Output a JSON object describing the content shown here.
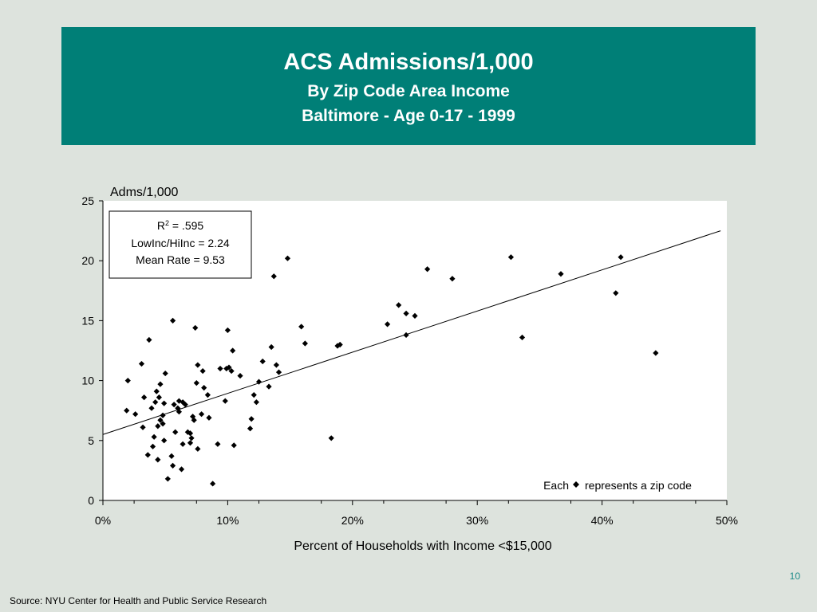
{
  "slide": {
    "title": "ACS Admissions/1,000",
    "subtitle1": "By Zip Code Area Income",
    "subtitle2": "Baltimore - Age 0-17 - 1999",
    "page_number": "10",
    "source": "Source:  NYU Center for Health and Public Service Research"
  },
  "colors": {
    "title_bg": "#007f77",
    "background": "#dde3dd",
    "plot_bg": "#ffffff",
    "marker": "#000000"
  },
  "chart_data": {
    "type": "scatter",
    "title": "",
    "xlabel": "Percent of Households with Income <$15,000",
    "ylabel": "Adms/1,000",
    "xlim": [
      0,
      50
    ],
    "ylim": [
      0,
      25
    ],
    "x_ticks": [
      "0%",
      "10%",
      "20%",
      "30%",
      "40%",
      "50%"
    ],
    "y_ticks": [
      "0",
      "5",
      "10",
      "15",
      "20",
      "25"
    ],
    "grid": false,
    "stats_box": {
      "r2_label": "R",
      "r2_sup": "2",
      "r2_value": " = .595",
      "line2": "LowInc/HiInc = 2.24",
      "line3": "Mean Rate = 9.53"
    },
    "note_prefix": "Each",
    "note_suffix": "represents a zip code",
    "trendline": {
      "x": [
        0,
        49.5
      ],
      "y": [
        5.5,
        22.5
      ]
    },
    "points": [
      [
        2.0,
        10.0
      ],
      [
        1.9,
        7.5
      ],
      [
        2.6,
        7.2
      ],
      [
        3.2,
        6.1
      ],
      [
        3.1,
        11.4
      ],
      [
        3.3,
        8.6
      ],
      [
        3.7,
        13.4
      ],
      [
        3.9,
        7.7
      ],
      [
        3.6,
        3.8
      ],
      [
        4.0,
        4.5
      ],
      [
        4.1,
        5.3
      ],
      [
        4.2,
        8.2
      ],
      [
        4.3,
        9.1
      ],
      [
        4.4,
        3.4
      ],
      [
        4.5,
        8.6
      ],
      [
        4.4,
        6.2
      ],
      [
        4.6,
        9.7
      ],
      [
        4.6,
        6.7
      ],
      [
        4.8,
        7.1
      ],
      [
        4.8,
        6.4
      ],
      [
        4.9,
        5.0
      ],
      [
        4.9,
        8.1
      ],
      [
        5.0,
        10.6
      ],
      [
        5.2,
        1.8
      ],
      [
        5.5,
        3.7
      ],
      [
        5.6,
        15.0
      ],
      [
        5.6,
        2.9
      ],
      [
        5.8,
        5.7
      ],
      [
        5.7,
        8.0
      ],
      [
        6.0,
        7.7
      ],
      [
        6.1,
        7.4
      ],
      [
        6.1,
        8.3
      ],
      [
        6.3,
        2.6
      ],
      [
        6.4,
        8.2
      ],
      [
        6.6,
        8.0
      ],
      [
        6.4,
        4.7
      ],
      [
        6.8,
        5.7
      ],
      [
        7.0,
        5.6
      ],
      [
        7.0,
        4.8
      ],
      [
        7.1,
        5.2
      ],
      [
        7.2,
        7.0
      ],
      [
        7.3,
        6.7
      ],
      [
        7.5,
        9.8
      ],
      [
        7.4,
        14.4
      ],
      [
        7.6,
        11.3
      ],
      [
        7.6,
        4.3
      ],
      [
        7.9,
        7.2
      ],
      [
        8.1,
        9.4
      ],
      [
        8.0,
        10.8
      ],
      [
        8.4,
        8.8
      ],
      [
        8.5,
        6.9
      ],
      [
        8.8,
        1.4
      ],
      [
        9.2,
        4.7
      ],
      [
        9.4,
        11.0
      ],
      [
        9.8,
        8.3
      ],
      [
        9.9,
        11.0
      ],
      [
        10.0,
        14.2
      ],
      [
        10.1,
        11.1
      ],
      [
        10.4,
        12.5
      ],
      [
        10.3,
        10.8
      ],
      [
        10.5,
        4.6
      ],
      [
        11.0,
        10.4
      ],
      [
        11.8,
        6.0
      ],
      [
        11.9,
        6.8
      ],
      [
        12.1,
        8.8
      ],
      [
        12.3,
        8.2
      ],
      [
        12.5,
        9.9
      ],
      [
        12.8,
        11.6
      ],
      [
        13.3,
        9.5
      ],
      [
        13.5,
        12.8
      ],
      [
        13.7,
        18.7
      ],
      [
        13.9,
        11.3
      ],
      [
        14.1,
        10.7
      ],
      [
        14.8,
        20.2
      ],
      [
        15.9,
        14.5
      ],
      [
        16.2,
        13.1
      ],
      [
        18.3,
        5.2
      ],
      [
        18.8,
        12.9
      ],
      [
        19.0,
        13.0
      ],
      [
        22.8,
        14.7
      ],
      [
        23.7,
        16.3
      ],
      [
        24.3,
        13.8
      ],
      [
        24.3,
        15.6
      ],
      [
        25.0,
        15.4
      ],
      [
        26.0,
        19.3
      ],
      [
        28.0,
        18.5
      ],
      [
        32.7,
        20.3
      ],
      [
        33.6,
        13.6
      ],
      [
        36.7,
        18.9
      ],
      [
        41.1,
        17.3
      ],
      [
        41.5,
        20.3
      ],
      [
        44.3,
        12.3
      ]
    ]
  }
}
